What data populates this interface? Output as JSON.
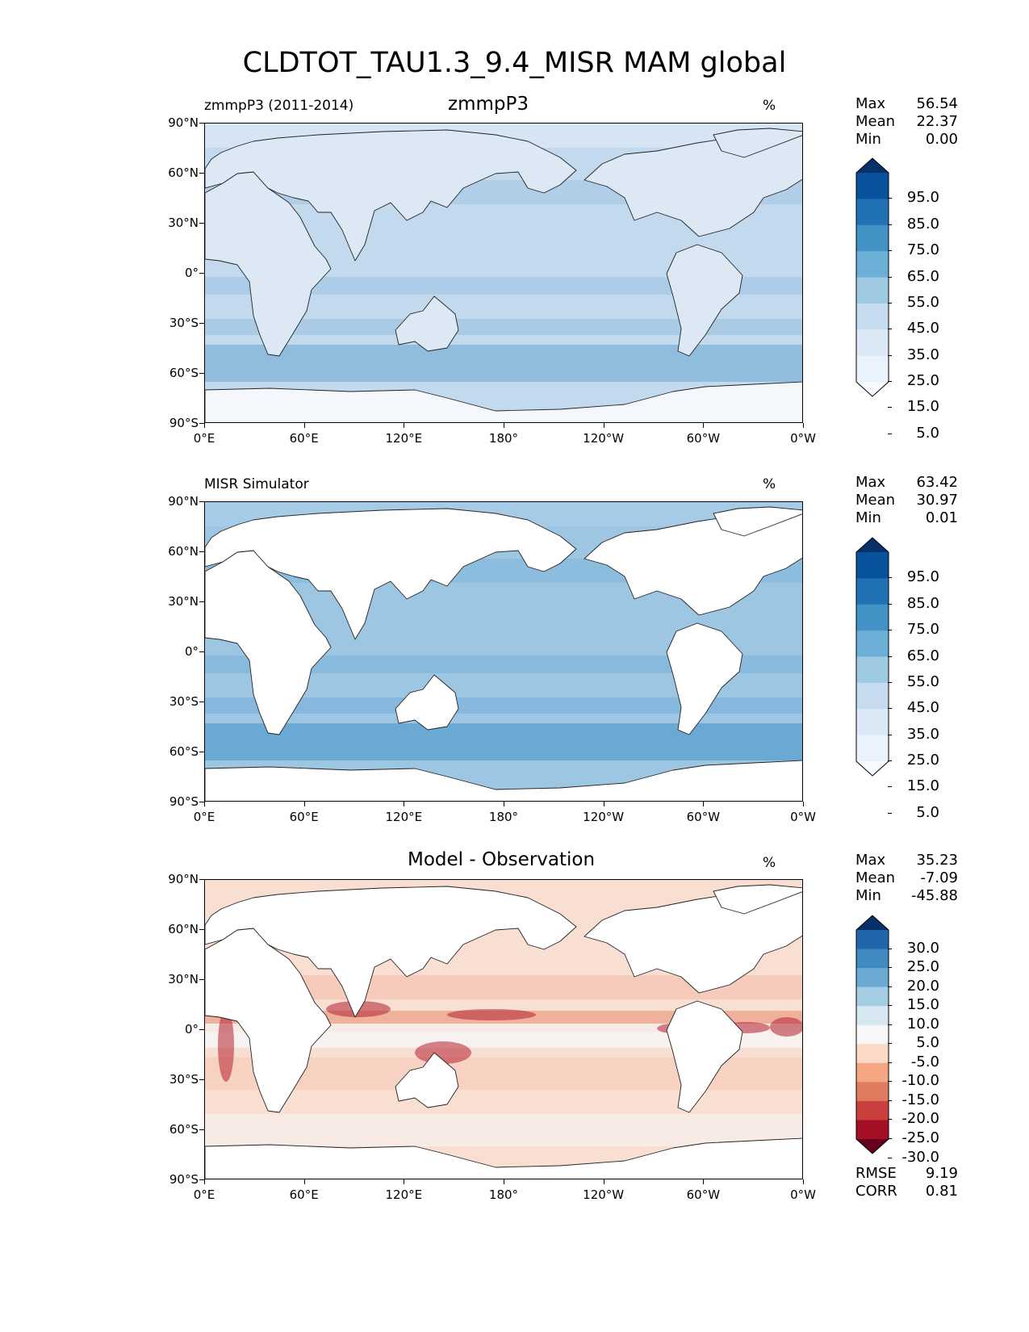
{
  "figure": {
    "title": "CLDTOT_TAU1.3_9.4_MISR MAM global"
  },
  "axes": {
    "lat_ticks": [
      "90°N",
      "60°N",
      "30°N",
      "0°",
      "30°S",
      "60°S",
      "90°S"
    ],
    "lon_ticks": [
      "0°E",
      "60°E",
      "120°E",
      "180°",
      "120°W",
      "60°W",
      "0°W"
    ]
  },
  "panels": [
    {
      "left_label": "zmmpP3 (2011-2014)",
      "center_title": "zmmpP3",
      "units": "%",
      "stats": [
        {
          "label": "Max",
          "value": "56.54"
        },
        {
          "label": "Mean",
          "value": "22.37"
        },
        {
          "label": "Min",
          "value": "0.00"
        }
      ],
      "colorbar": {
        "levels": [
          "95.0",
          "85.0",
          "75.0",
          "65.0",
          "55.0",
          "45.0",
          "35.0",
          "25.0",
          "15.0",
          "5.0"
        ],
        "colors": [
          "#08306b",
          "#08519c",
          "#2171b5",
          "#4292c6",
          "#6baed6",
          "#9ecae1",
          "#c6dbef",
          "#dbe9f6",
          "#eaf2fb",
          "#f7fbff"
        ]
      },
      "map_colors": {
        "ocean": "#c2d9ee",
        "land": "#dce9f5",
        "band": "#7fb1d8",
        "arctic": "#d7e6f4",
        "antarctica": "#f4f8fd"
      }
    },
    {
      "left_label": "MISR Simulator",
      "center_title": "",
      "units": "%",
      "stats": [
        {
          "label": "Max",
          "value": "63.42"
        },
        {
          "label": "Mean",
          "value": "30.97"
        },
        {
          "label": "Min",
          "value": "0.01"
        }
      ],
      "colorbar": {
        "levels": [
          "95.0",
          "85.0",
          "75.0",
          "65.0",
          "55.0",
          "45.0",
          "35.0",
          "25.0",
          "15.0",
          "5.0"
        ],
        "colors": [
          "#08306b",
          "#08519c",
          "#2171b5",
          "#4292c6",
          "#6baed6",
          "#9ecae1",
          "#c6dbef",
          "#dbe9f6",
          "#eaf2fb",
          "#f7fbff"
        ]
      },
      "map_colors": {
        "ocean": "#9dc6e3",
        "land": "#ffffff",
        "band": "#5b9fd0",
        "arctic": "#a7cbe6",
        "antarctica": "#ffffff"
      }
    },
    {
      "left_label": "",
      "center_title": "Model - Observation",
      "units": "%",
      "stats": [
        {
          "label": "Max",
          "value": "35.23"
        },
        {
          "label": "Mean",
          "value": "-7.09"
        },
        {
          "label": "Min",
          "value": "-45.88"
        }
      ],
      "colorbar": {
        "levels": [
          "30.0",
          "25.0",
          "20.0",
          "15.0",
          "10.0",
          "5.0",
          "-5.0",
          "-10.0",
          "-15.0",
          "-20.0",
          "-25.0",
          "-30.0"
        ],
        "colors": [
          "#08306b",
          "#2166ac",
          "#3f8ac0",
          "#6ba9d2",
          "#a4cde3",
          "#d6e7f1",
          "#f7f7f7",
          "#fbd9c6",
          "#f4a582",
          "#e07b5f",
          "#c9403f",
          "#a50f25",
          "#67001f"
        ]
      },
      "map_colors": {
        "ocean": "#f9ded2",
        "land": "#ffffff",
        "band": "#e58c70",
        "arctic": "#f7f4f4",
        "antarctica": "#ffffff"
      },
      "metrics": [
        {
          "label": "RMSE",
          "value": "9.19"
        },
        {
          "label": "CORR",
          "value": "0.81"
        }
      ]
    }
  ]
}
